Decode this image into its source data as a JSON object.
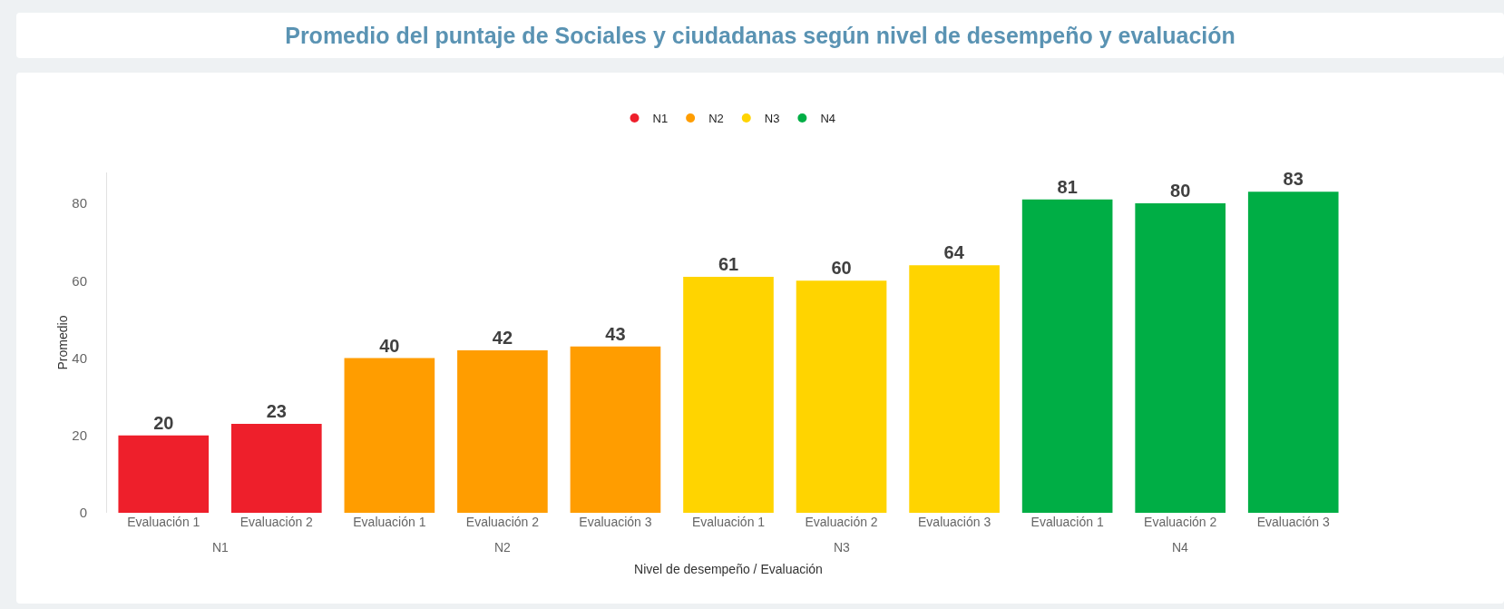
{
  "chart_data": {
    "type": "bar",
    "title": "Promedio del puntaje de Sociales y ciudadanas según nivel de desempeño y evaluación",
    "xlabel": "Nivel de desempeño / Evaluación",
    "ylabel": "Promedio",
    "categories": [
      "Evaluación 1",
      "Evaluación 2",
      "Evaluación 1",
      "Evaluación 2",
      "Evaluación 3",
      "Evaluación 1",
      "Evaluación 2",
      "Evaluación 3",
      "Evaluación 1",
      "Evaluación 2",
      "Evaluación 3"
    ],
    "series": [
      {
        "name": "N1",
        "color": "#ee1f2b",
        "values": [
          20,
          23,
          null,
          null,
          null,
          null,
          null,
          null,
          null,
          null,
          null
        ]
      },
      {
        "name": "N2",
        "color": "#ff9d00",
        "values": [
          null,
          null,
          40,
          42,
          43,
          null,
          null,
          null,
          null,
          null,
          null
        ]
      },
      {
        "name": "N3",
        "color": "#ffd400",
        "values": [
          null,
          null,
          null,
          null,
          null,
          61,
          60,
          64,
          null,
          null,
          null
        ]
      },
      {
        "name": "N4",
        "color": "#00ae45",
        "values": [
          null,
          null,
          null,
          null,
          null,
          null,
          null,
          null,
          81,
          80,
          83
        ]
      }
    ],
    "ylim": [
      0,
      88
    ],
    "yticks": [
      0,
      20,
      40,
      60,
      80
    ],
    "grid": false,
    "legend": "top",
    "data_labels": true
  }
}
